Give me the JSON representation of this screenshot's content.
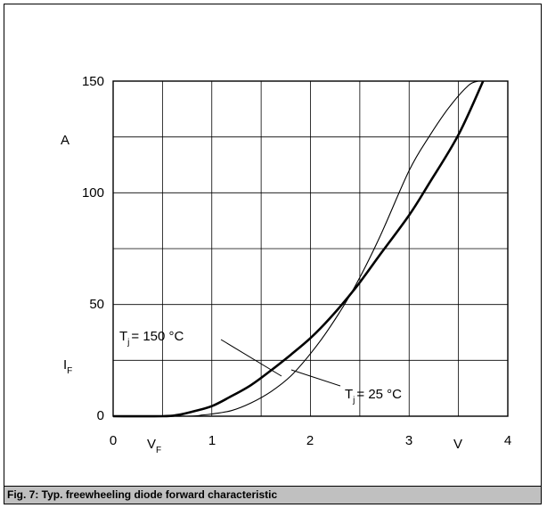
{
  "caption": "Fig. 7: Typ. freewheeling diode forward characteristic",
  "chart_data": {
    "type": "line",
    "title": "",
    "x_axis": {
      "range": [
        0,
        4
      ],
      "ticks": [
        "0",
        "1",
        "2",
        "3",
        "4"
      ],
      "symbol_main": "V",
      "symbol_sub": "F",
      "unit": "V",
      "minor_gridlines": true
    },
    "y_axis": {
      "range": [
        0,
        150
      ],
      "ticks": [
        "0",
        "50",
        "100",
        "150"
      ],
      "symbol_main": "I",
      "symbol_sub": "F",
      "unit": "A",
      "minor_gridlines": true
    },
    "grid": true,
    "series": [
      {
        "name_main": "T",
        "name_sub": "j",
        "name_rest": "= 150 °C",
        "line": "thick",
        "x": [
          0.0,
          0.5,
          0.65,
          0.8,
          1.0,
          1.2,
          1.4,
          1.6,
          1.8,
          2.0,
          2.2,
          2.45,
          2.7,
          3.0,
          3.2,
          3.5,
          3.75
        ],
        "y": [
          0,
          0,
          0.5,
          2,
          4.5,
          9,
          14,
          20.5,
          27.5,
          35,
          44,
          57,
          72,
          90,
          104,
          126,
          150
        ]
      },
      {
        "name_main": "T",
        "name_sub": "j",
        "name_rest": "= 25 °C",
        "line": "thin",
        "x": [
          0.0,
          0.75,
          0.9,
          1.0,
          1.2,
          1.4,
          1.6,
          1.8,
          2.0,
          2.2,
          2.45,
          2.7,
          3.0,
          3.2,
          3.4,
          3.6,
          3.7
        ],
        "y": [
          0,
          0,
          0.5,
          1,
          2.5,
          6,
          11,
          18,
          28,
          40,
          58,
          80,
          110,
          125,
          138,
          148,
          150
        ]
      }
    ]
  }
}
